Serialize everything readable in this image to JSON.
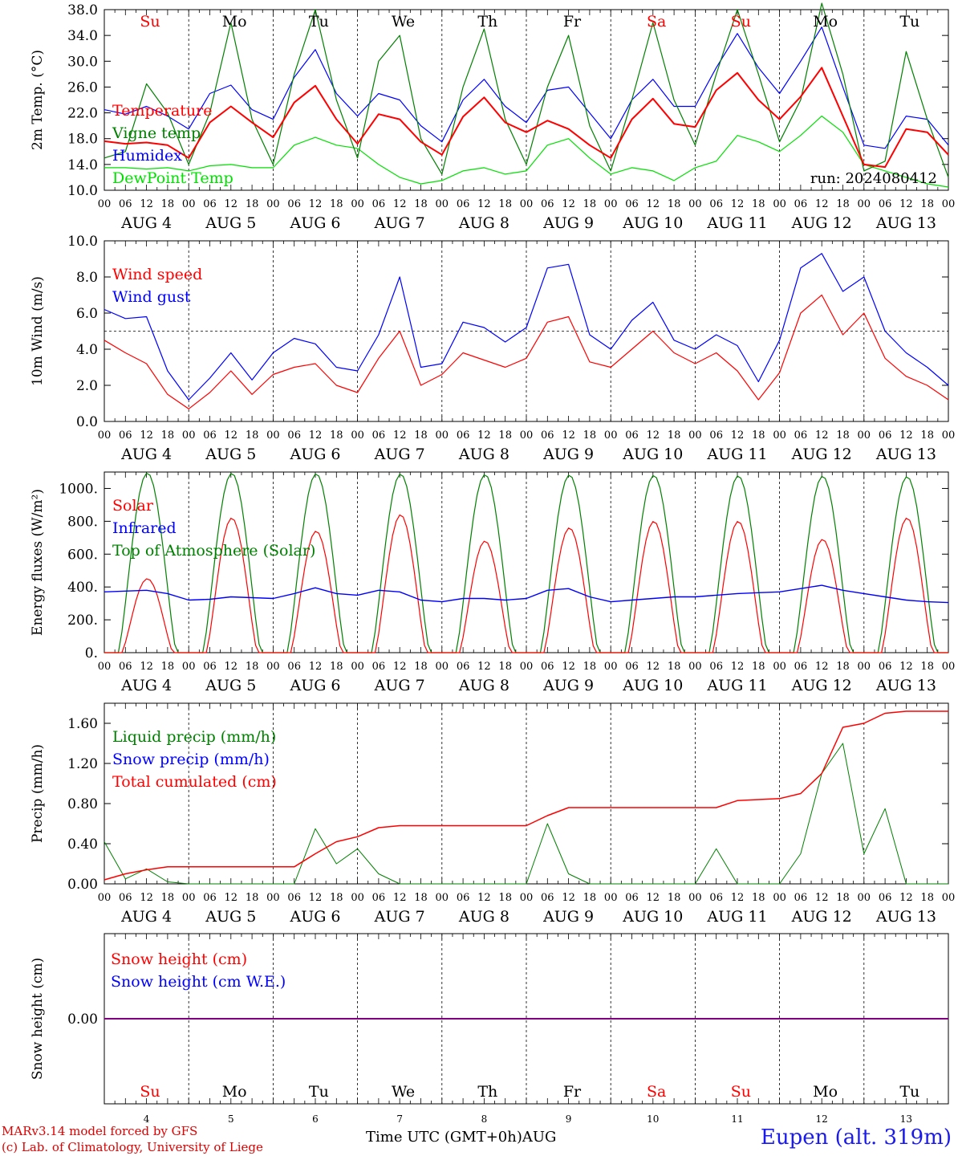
{
  "chart_data": [
    {
      "type": "line",
      "ylabel": "2m Temp. (°C)",
      "ylim": [
        10,
        38
      ],
      "yticks": [
        "10.0",
        "14.0",
        "18.0",
        "22.0",
        "26.0",
        "30.0",
        "34.0",
        "38.0"
      ],
      "annotation": "run: 2024080412",
      "legend": [
        "Temperature",
        "Vigne temp",
        "Humidex",
        "DewPoint Temp"
      ],
      "x_hours": [
        0,
        6,
        12,
        18,
        24,
        30,
        36,
        42,
        48,
        54,
        60,
        66,
        72,
        78,
        84,
        90,
        96,
        102,
        108,
        114,
        120,
        126,
        132,
        138,
        144,
        150,
        156,
        162,
        168,
        174,
        180,
        186,
        192,
        198,
        204,
        210,
        216,
        222,
        228,
        234,
        240
      ],
      "series": [
        {
          "name": "Temperature",
          "color": "#ff0000",
          "values": [
            17.6,
            17.2,
            17.4,
            17.0,
            15.0,
            20.5,
            23.0,
            20.5,
            18.2,
            23.6,
            26.2,
            21.0,
            17.2,
            21.8,
            21.0,
            17.5,
            15.5,
            21.4,
            24.4,
            20.5,
            19.0,
            20.8,
            19.5,
            17.0,
            15.0,
            21.0,
            24.2,
            20.3,
            19.8,
            25.5,
            28.2,
            24.0,
            21.0,
            24.5,
            29.0,
            21.5,
            14.0,
            13.6,
            19.5,
            19.0,
            15.5
          ]
        },
        {
          "name": "Vigne temp",
          "color": "#008000",
          "values": [
            15.0,
            16.0,
            26.5,
            22.0,
            14.0,
            22.0,
            36.0,
            21.0,
            14.0,
            28.0,
            38.0,
            24.0,
            15.0,
            30.0,
            34.0,
            18.0,
            12.5,
            26.0,
            35.0,
            21.0,
            14.0,
            26.0,
            34.0,
            20.0,
            13.0,
            24.0,
            36.0,
            24.0,
            17.0,
            28.0,
            38.0,
            28.0,
            17.5,
            24.0,
            39.0,
            28.0,
            13.0,
            14.5,
            31.5,
            21.0,
            12.0
          ]
        },
        {
          "name": "Humidex",
          "color": "#0000ff",
          "values": [
            22.5,
            21.8,
            23.0,
            21.5,
            19.5,
            25.0,
            26.3,
            22.5,
            21.0,
            27.5,
            31.8,
            25.0,
            21.5,
            25.0,
            24.0,
            20.0,
            17.5,
            24.0,
            27.2,
            23.0,
            20.5,
            25.5,
            26.0,
            22.0,
            18.0,
            24.0,
            27.2,
            23.0,
            23.0,
            29.0,
            34.3,
            29.0,
            25.0,
            30.0,
            35.3,
            26.0,
            17.0,
            16.5,
            21.5,
            21.0,
            17.0
          ]
        },
        {
          "name": "DewPoint Temp",
          "color": "#00e000",
          "values": [
            13.5,
            13.5,
            13.3,
            13.5,
            13.0,
            13.8,
            14.0,
            13.5,
            13.5,
            17.0,
            18.2,
            17.0,
            16.5,
            14.0,
            12.0,
            11.0,
            11.5,
            13.0,
            13.5,
            12.5,
            13.0,
            17.0,
            18.0,
            15.0,
            12.5,
            13.5,
            13.0,
            11.5,
            13.5,
            14.5,
            18.5,
            17.5,
            16.0,
            18.5,
            21.5,
            19.0,
            14.0,
            13.0,
            12.0,
            11.0,
            10.5
          ]
        }
      ]
    },
    {
      "type": "line",
      "ylabel": "10m Wind (m/s)",
      "ylim": [
        0,
        10
      ],
      "yticks": [
        "0.0",
        "2.0",
        "4.0",
        "6.0",
        "8.0",
        "10.0"
      ],
      "reference_line": 5,
      "legend": [
        "Wind speed",
        "Wind gust"
      ],
      "x_hours": [
        0,
        6,
        12,
        18,
        24,
        30,
        36,
        42,
        48,
        54,
        60,
        66,
        72,
        78,
        84,
        90,
        96,
        102,
        108,
        114,
        120,
        126,
        132,
        138,
        144,
        150,
        156,
        162,
        168,
        174,
        180,
        186,
        192,
        198,
        204,
        210,
        216,
        222,
        228,
        234,
        240
      ],
      "series": [
        {
          "name": "Wind speed",
          "color": "#ff0000",
          "values": [
            4.5,
            3.8,
            3.2,
            1.5,
            0.7,
            1.6,
            2.8,
            1.5,
            2.6,
            3.0,
            3.2,
            2.0,
            1.6,
            3.5,
            5.0,
            2.0,
            2.6,
            3.8,
            3.4,
            3.0,
            3.5,
            5.5,
            5.8,
            3.3,
            3.0,
            4.0,
            5.0,
            3.8,
            3.2,
            3.8,
            2.8,
            1.2,
            2.7,
            6.0,
            7.0,
            4.8,
            6.0,
            3.5,
            2.5,
            2.0,
            1.2
          ]
        },
        {
          "name": "Wind gust",
          "color": "#0000ff",
          "values": [
            6.2,
            5.7,
            5.8,
            2.8,
            1.2,
            2.4,
            3.8,
            2.3,
            3.8,
            4.6,
            4.3,
            3.0,
            2.8,
            4.8,
            8.0,
            3.0,
            3.2,
            5.5,
            5.2,
            4.4,
            5.2,
            8.5,
            8.7,
            4.8,
            4.0,
            5.6,
            6.6,
            4.5,
            4.0,
            4.8,
            4.2,
            2.2,
            4.5,
            8.5,
            9.3,
            7.2,
            8.0,
            5.0,
            3.8,
            3.0,
            2.0
          ]
        }
      ]
    },
    {
      "type": "line",
      "ylabel": "Energy fluxes (W/m²)",
      "ylim": [
        0,
        1100
      ],
      "yticks": [
        "0.",
        "200.",
        "400.",
        "600.",
        "800.",
        "1000."
      ],
      "legend": [
        "Solar",
        "Infrared",
        "Top of Atmosphere (Solar)"
      ],
      "diurnal_peak_toa": [
        1095,
        1093,
        1090,
        1088,
        1085,
        1082,
        1080,
        1077,
        1075,
        1072
      ],
      "diurnal_peak_solar": [
        450,
        820,
        740,
        840,
        680,
        760,
        800,
        800,
        690,
        820
      ],
      "series": [
        {
          "name": "Infrared",
          "color": "#0000ff",
          "values": [
            370,
            375,
            380,
            360,
            320,
            325,
            340,
            335,
            330,
            360,
            395,
            360,
            350,
            380,
            370,
            320,
            310,
            330,
            330,
            320,
            330,
            380,
            390,
            340,
            310,
            320,
            330,
            340,
            340,
            350,
            360,
            365,
            370,
            390,
            410,
            380,
            360,
            340,
            320,
            310,
            305
          ]
        }
      ]
    },
    {
      "type": "line",
      "ylabel": "Precip (mm/h)",
      "ylim": [
        0,
        1.8
      ],
      "yticks": [
        "0.00",
        "0.40",
        "0.80",
        "1.20",
        "1.60"
      ],
      "legend": [
        "Liquid precip (mm/h)",
        "Snow precip (mm/h)",
        "Total cumulated (cm)"
      ],
      "x_hours": [
        0,
        6,
        12,
        18,
        24,
        30,
        36,
        42,
        48,
        54,
        60,
        66,
        72,
        78,
        84,
        90,
        96,
        102,
        108,
        114,
        120,
        126,
        132,
        138,
        144,
        150,
        156,
        162,
        168,
        174,
        180,
        186,
        192,
        198,
        204,
        210,
        216,
        222,
        228,
        234,
        240
      ],
      "series": [
        {
          "name": "Liquid precip (mm/h)",
          "color": "#008000",
          "values": [
            0.42,
            0.05,
            0.15,
            0.02,
            0,
            0,
            0,
            0,
            0,
            0,
            0.55,
            0.2,
            0.35,
            0.1,
            0,
            0,
            0,
            0,
            0,
            0,
            0,
            0.6,
            0.1,
            0,
            0,
            0,
            0,
            0,
            0,
            0.35,
            0,
            0,
            0,
            0.3,
            1.1,
            1.4,
            0.3,
            0.75,
            0,
            0,
            0
          ]
        },
        {
          "name": "Total cumulated (cm)",
          "color": "#ff0000",
          "values": [
            0.04,
            0.1,
            0.14,
            0.17,
            0.17,
            0.17,
            0.17,
            0.17,
            0.17,
            0.17,
            0.3,
            0.42,
            0.47,
            0.56,
            0.58,
            0.58,
            0.58,
            0.58,
            0.58,
            0.58,
            0.58,
            0.68,
            0.76,
            0.76,
            0.76,
            0.76,
            0.76,
            0.76,
            0.76,
            0.76,
            0.83,
            0.84,
            0.85,
            0.9,
            1.1,
            1.56,
            1.6,
            1.7,
            1.72,
            1.72,
            1.72
          ]
        }
      ]
    },
    {
      "type": "line",
      "ylabel": "Snow height (cm)",
      "yticks": [
        "0.00"
      ],
      "legend": [
        "Snow height (cm)",
        "Snow height (cm W.E.)"
      ],
      "series": [
        {
          "name": "Snow height (cm)",
          "color": "#ff0000",
          "values": [
            0,
            0
          ]
        },
        {
          "name": "Snow height (cm W.E.)",
          "color": "#0000ff",
          "values": [
            0,
            0
          ]
        }
      ]
    }
  ],
  "days": [
    "Su",
    "Mo",
    "Tu",
    "We",
    "Th",
    "Fr",
    "Sa",
    "Su",
    "Mo",
    "Tu"
  ],
  "day_colors": [
    "#ff0000",
    "#000000",
    "#000000",
    "#000000",
    "#000000",
    "#000000",
    "#ff0000",
    "#ff0000",
    "#000000",
    "#000000"
  ],
  "dates": [
    "AUG  4",
    "AUG  5",
    "AUG  6",
    "AUG  7",
    "AUG  8",
    "AUG  9",
    "AUG 10",
    "AUG 11",
    "AUG 12",
    "AUG 13"
  ],
  "day_numbers": [
    "4",
    "5",
    "6",
    "7",
    "8",
    "9",
    "10",
    "11",
    "12",
    "13"
  ],
  "hour_labels": [
    "00",
    "06",
    "12",
    "18"
  ],
  "colors": {
    "temperature": "#ff0000",
    "vigne": "#008000",
    "humidex": "#0000ff",
    "dewpoint": "#00e000",
    "toa": "#008000",
    "snow_line": "#800080"
  },
  "footer": {
    "model": "MARv3.14 model forced by GFS",
    "credit": "(c) Lab. of Climatology, University of Liege",
    "xaxis": "Time UTC (GMT+0h)AUG",
    "location": "Eupen (alt. 319m)"
  }
}
